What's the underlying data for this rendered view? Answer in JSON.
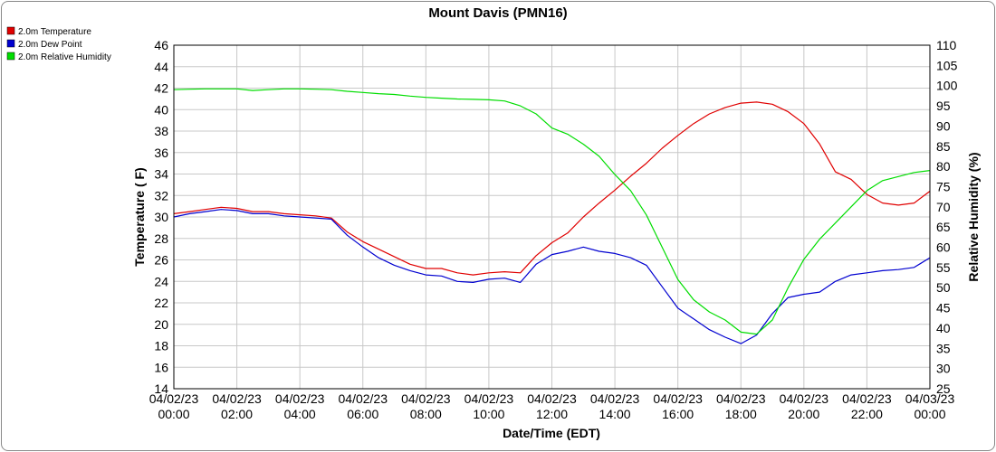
{
  "chart_data": {
    "type": "line",
    "title": "Mount Davis (PMN16)",
    "xlabel": "Date/Time (EDT)",
    "ylabel_left": "Temperature ( F)",
    "ylabel_right": "Relative Humidity (%)",
    "x_ticks": [
      {
        "date": "04/02/23",
        "time": "00:00"
      },
      {
        "date": "04/02/23",
        "time": "02:00"
      },
      {
        "date": "04/02/23",
        "time": "04:00"
      },
      {
        "date": "04/02/23",
        "time": "06:00"
      },
      {
        "date": "04/02/23",
        "time": "08:00"
      },
      {
        "date": "04/02/23",
        "time": "10:00"
      },
      {
        "date": "04/02/23",
        "time": "12:00"
      },
      {
        "date": "04/02/23",
        "time": "14:00"
      },
      {
        "date": "04/02/23",
        "time": "16:00"
      },
      {
        "date": "04/02/23",
        "time": "18:00"
      },
      {
        "date": "04/02/23",
        "time": "20:00"
      },
      {
        "date": "04/02/23",
        "time": "22:00"
      },
      {
        "date": "04/03/23",
        "time": "00:00"
      }
    ],
    "x_range_hours": [
      0,
      24
    ],
    "ylim_left": [
      14,
      46
    ],
    "yticks_left": [
      14,
      16,
      18,
      20,
      22,
      24,
      26,
      28,
      30,
      32,
      34,
      36,
      38,
      40,
      42,
      44,
      46
    ],
    "ylim_right": [
      25,
      110
    ],
    "yticks_right": [
      25,
      30,
      35,
      40,
      45,
      50,
      55,
      60,
      65,
      70,
      75,
      80,
      85,
      90,
      95,
      100,
      105,
      110
    ],
    "grid": true,
    "legend_position": "top-left",
    "series": [
      {
        "name": "2.0m Temperature",
        "color": "#e00000",
        "axis": "left",
        "x": [
          0,
          0.5,
          1,
          1.5,
          2,
          2.5,
          3,
          3.5,
          4,
          4.5,
          5,
          5.5,
          6,
          6.5,
          7,
          7.5,
          8,
          8.5,
          9,
          9.5,
          10,
          10.5,
          11,
          11.5,
          12,
          12.5,
          13,
          13.5,
          14,
          14.5,
          15,
          15.5,
          16,
          16.5,
          17,
          17.5,
          18,
          18.5,
          19,
          19.5,
          20,
          20.5,
          21,
          21.5,
          22,
          22.5,
          23,
          23.5,
          24
        ],
        "values": [
          30.3,
          30.5,
          30.7,
          30.9,
          30.8,
          30.5,
          30.5,
          30.3,
          30.2,
          30.1,
          29.9,
          28.6,
          27.7,
          27.0,
          26.3,
          25.6,
          25.2,
          25.2,
          24.8,
          24.6,
          24.8,
          24.9,
          24.8,
          26.4,
          27.6,
          28.5,
          30.0,
          31.3,
          32.5,
          33.8,
          35.0,
          36.4,
          37.6,
          38.7,
          39.6,
          40.2,
          40.6,
          40.7,
          40.5,
          39.8,
          38.7,
          36.8,
          34.2,
          33.5,
          32.1,
          31.3,
          31.1,
          31.3,
          32.4
        ]
      },
      {
        "name": "2.0m Dew Point",
        "color": "#0000d0",
        "axis": "left",
        "x": [
          0,
          0.5,
          1,
          1.5,
          2,
          2.5,
          3,
          3.5,
          4,
          4.5,
          5,
          5.5,
          6,
          6.5,
          7,
          7.5,
          8,
          8.5,
          9,
          9.5,
          10,
          10.5,
          11,
          11.5,
          12,
          12.5,
          13,
          13.5,
          14,
          14.5,
          15,
          15.5,
          16,
          16.5,
          17,
          17.5,
          18,
          18.5,
          19,
          19.5,
          20,
          20.5,
          21,
          21.5,
          22,
          22.5,
          23,
          23.5,
          24
        ],
        "values": [
          30.0,
          30.3,
          30.5,
          30.7,
          30.6,
          30.3,
          30.3,
          30.1,
          30.0,
          29.9,
          29.8,
          28.3,
          27.2,
          26.2,
          25.5,
          25.0,
          24.6,
          24.5,
          24.0,
          23.9,
          24.2,
          24.3,
          23.9,
          25.6,
          26.5,
          26.8,
          27.2,
          26.8,
          26.6,
          26.2,
          25.5,
          23.5,
          21.5,
          20.5,
          19.5,
          18.8,
          18.2,
          19.0,
          21.0,
          22.5,
          22.8,
          23.0,
          24.0,
          24.6,
          24.8,
          25.0,
          25.1,
          25.3,
          26.2
        ]
      },
      {
        "name": "2.0m Relative Humidity",
        "color": "#00dd00",
        "axis": "right",
        "x": [
          0,
          0.5,
          1,
          1.5,
          2,
          2.5,
          3,
          3.5,
          4,
          4.5,
          5,
          5.5,
          6,
          6.5,
          7,
          7.5,
          8,
          8.5,
          9,
          9.5,
          10,
          10.5,
          11,
          11.5,
          12,
          12.5,
          13,
          13.5,
          14,
          14.5,
          15,
          15.5,
          16,
          16.5,
          17,
          17.5,
          18,
          18.5,
          19,
          19.5,
          20,
          20.5,
          21,
          21.5,
          22,
          22.5,
          23,
          23.5,
          24
        ],
        "values": [
          99.0,
          99.1,
          99.2,
          99.2,
          99.2,
          98.8,
          99.0,
          99.2,
          99.2,
          99.1,
          99.0,
          98.6,
          98.3,
          98.0,
          97.8,
          97.4,
          97.1,
          96.9,
          96.7,
          96.6,
          96.5,
          96.2,
          95.0,
          93.0,
          89.5,
          88.0,
          85.5,
          82.5,
          78.0,
          74.0,
          68.0,
          60.0,
          52.0,
          47.0,
          44.0,
          42.0,
          39.0,
          38.5,
          42.0,
          50.0,
          57.0,
          62.0,
          66.0,
          70.0,
          74.0,
          76.5,
          77.5,
          78.5,
          79.0
        ]
      }
    ]
  }
}
